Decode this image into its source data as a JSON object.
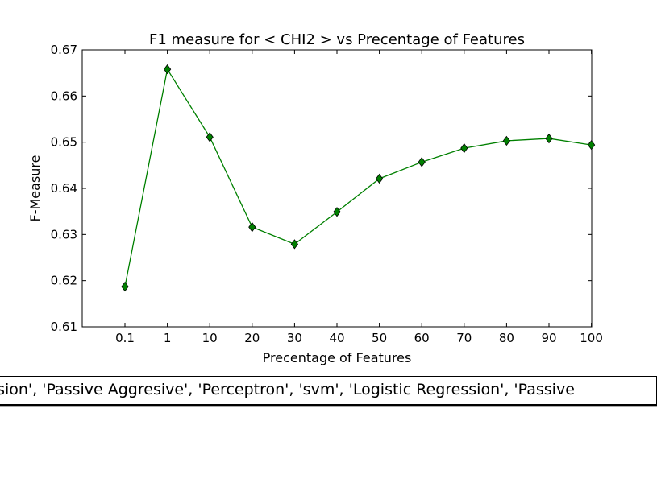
{
  "chart_data": {
    "type": "line",
    "title": "F1 measure for < CHI2 > vs Precentage of Features",
    "xlabel": "Precentage of Features",
    "ylabel": "F-Measure",
    "categories": [
      "0.1",
      "1",
      "10",
      "20",
      "30",
      "40",
      "50",
      "60",
      "70",
      "80",
      "90",
      "100"
    ],
    "series": [
      {
        "values": [
          0.6187,
          0.6658,
          0.6511,
          0.6316,
          0.6279,
          0.6349,
          0.6421,
          0.6457,
          0.6487,
          0.6503,
          0.6508,
          0.6494
        ],
        "color": "#008000",
        "marker": "diamond"
      }
    ],
    "ylim": [
      0.61,
      0.67
    ],
    "yticks": [
      "0.61",
      "0.62",
      "0.63",
      "0.64",
      "0.65",
      "0.66",
      "0.67"
    ],
    "grid": false
  },
  "legend": {
    "text": "Regression', 'Passive Aggresive', 'Perceptron', 'svm', 'Logistic Regression', 'Passive"
  }
}
